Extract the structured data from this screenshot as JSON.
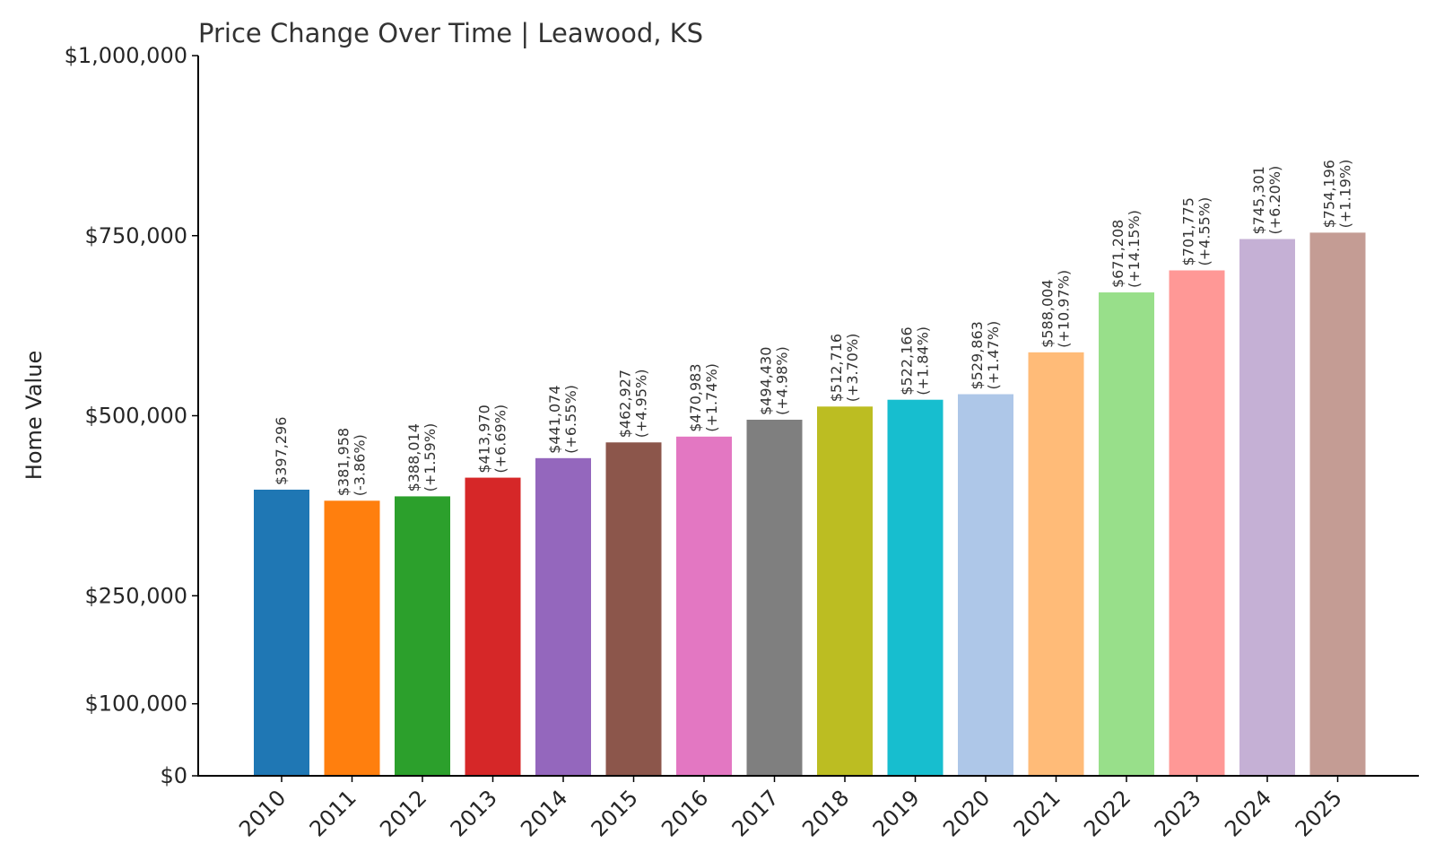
{
  "chart_data": {
    "type": "bar",
    "title": "Price Change Over Time | Leawood, KS",
    "xlabel": "",
    "ylabel": "Home Value",
    "ylim": [
      0,
      1000000
    ],
    "yticks": [
      0,
      100000,
      250000,
      500000,
      750000,
      1000000
    ],
    "ytick_labels": [
      "$0",
      "$100,000",
      "$250,000",
      "$500,000",
      "$750,000",
      "$1,000,000"
    ],
    "grid": false,
    "categories": [
      "2010",
      "2011",
      "2012",
      "2013",
      "2014",
      "2015",
      "2016",
      "2017",
      "2018",
      "2019",
      "2020",
      "2021",
      "2022",
      "2023",
      "2024",
      "2025"
    ],
    "values": [
      397296,
      381958,
      388014,
      413970,
      441074,
      462927,
      470983,
      494430,
      512716,
      522166,
      529863,
      588004,
      671208,
      701775,
      745301,
      754196
    ],
    "value_labels": [
      "$397,296",
      "$381,958",
      "$388,014",
      "$413,970",
      "$441,074",
      "$462,927",
      "$470,983",
      "$494,430",
      "$512,716",
      "$522,166",
      "$529,863",
      "$588,004",
      "$671,208",
      "$701,775",
      "$745,301",
      "$754,196"
    ],
    "change_labels": [
      "",
      "(-3.86%)",
      "(+1.59%)",
      "(+6.69%)",
      "(+6.55%)",
      "(+4.95%)",
      "(+1.74%)",
      "(+4.98%)",
      "(+3.70%)",
      "(+1.84%)",
      "(+1.47%)",
      "(+10.97%)",
      "(+14.15%)",
      "(+4.55%)",
      "(+6.20%)",
      "(+1.19%)"
    ],
    "colors": [
      "#1f77b4",
      "#ff7f0e",
      "#2ca02c",
      "#d62728",
      "#9467bd",
      "#8c564b",
      "#e377c2",
      "#7f7f7f",
      "#bcbd22",
      "#17becf",
      "#aec7e8",
      "#ffbb78",
      "#98df8a",
      "#ff9896",
      "#c5b0d5",
      "#c49c94"
    ]
  }
}
